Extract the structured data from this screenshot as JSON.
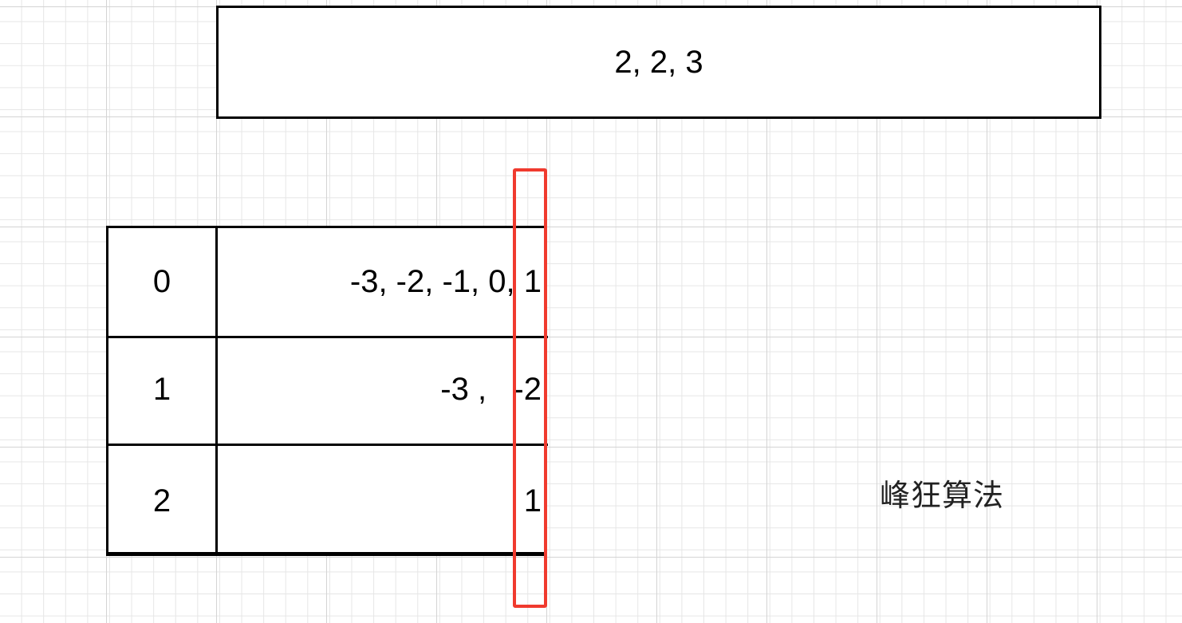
{
  "top_box": {
    "text": "2, 2, 3"
  },
  "table": {
    "rows": [
      {
        "index": "0",
        "value": "-3, -2, -1, 0, 1"
      },
      {
        "index": "1",
        "value": "-3 ,   -2"
      },
      {
        "index": "2",
        "value": "1"
      }
    ]
  },
  "highlight": {
    "color": "#f03a2e"
  },
  "watermark": {
    "text": "峰狂算法"
  }
}
